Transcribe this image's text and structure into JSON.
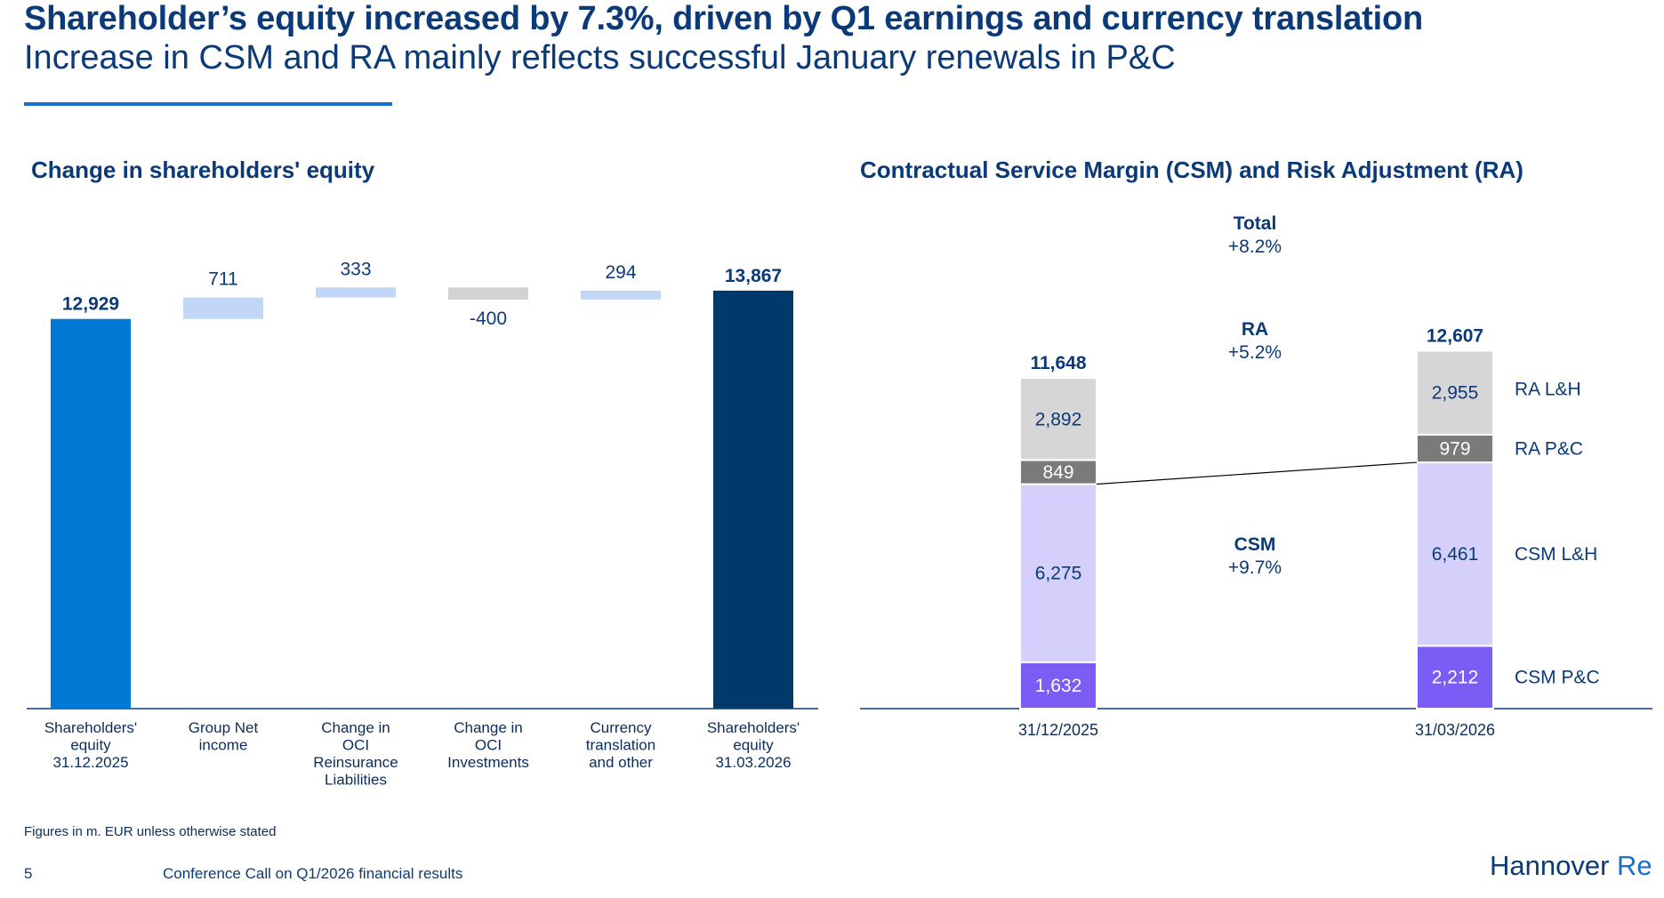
{
  "header": {
    "title": "Shareholder’s equity increased by 7.3%, driven by Q1 earnings and currency translation",
    "subtitle": "Increase in CSM and RA mainly reflects successful January renewals in P&C"
  },
  "colors": {
    "brand_blue": "#0078d4",
    "dark_navy": "#003a6b",
    "light_blue": "#c2d6f7",
    "grey_bar": "#d2d2d2",
    "ra_lh": "#d6d6d6",
    "ra_pc": "#7a7a7a",
    "csm_lh": "#d4cffb",
    "csm_pc": "#7b5cf5"
  },
  "chart_data": [
    {
      "type": "bar",
      "subtype": "waterfall",
      "title": "Change in shareholders' equity",
      "categories": [
        [
          "Shareholders'",
          "equity",
          "31.12.2025"
        ],
        [
          "Group Net",
          "income"
        ],
        [
          "Change in",
          "OCI",
          "Reinsurance",
          "Liabilities"
        ],
        [
          "Change in",
          "OCI",
          "Investments"
        ],
        [
          "Currency",
          "translation",
          "and other"
        ],
        [
          "Shareholders'",
          "equity",
          "31.03.2026"
        ]
      ],
      "values": [
        12929,
        711,
        333,
        -400,
        294,
        13867
      ],
      "value_labels": [
        "12,929",
        "711",
        "333",
        "-400",
        "294",
        "13,867"
      ],
      "bar_kinds": [
        "total-start",
        "increase",
        "increase",
        "decrease",
        "increase",
        "total-end"
      ]
    },
    {
      "type": "bar",
      "subtype": "stacked",
      "title": "Contractual Service Margin (CSM) and Risk Adjustment (RA)",
      "categories": [
        "31/12/2025",
        "31/03/2026"
      ],
      "totals": [
        11648,
        12607
      ],
      "total_labels": [
        "11,648",
        "12,607"
      ],
      "series": [
        {
          "name": "CSM P&C",
          "values": [
            1632,
            2212
          ],
          "labels": [
            "1,632",
            "2,212"
          ]
        },
        {
          "name": "CSM L&H",
          "values": [
            6275,
            6461
          ],
          "labels": [
            "6,275",
            "6,461"
          ]
        },
        {
          "name": "RA P&C",
          "values": [
            849,
            979
          ],
          "labels": [
            "849",
            "979"
          ]
        },
        {
          "name": "RA L&H",
          "values": [
            2892,
            2955
          ],
          "labels": [
            "2,892",
            "2,955"
          ]
        }
      ],
      "annotations": [
        {
          "label": "Total",
          "value": "+8.2%"
        },
        {
          "label": "RA",
          "value": "+5.2%"
        },
        {
          "label": "CSM",
          "value": "+9.7%"
        }
      ]
    }
  ],
  "footer": {
    "note": "Figures in m. EUR unless otherwise stated",
    "page_number": "5",
    "caption": "Conference Call on Q1/2026 financial results",
    "logo_part1": "Hannover",
    "logo_part2": "Re"
  }
}
